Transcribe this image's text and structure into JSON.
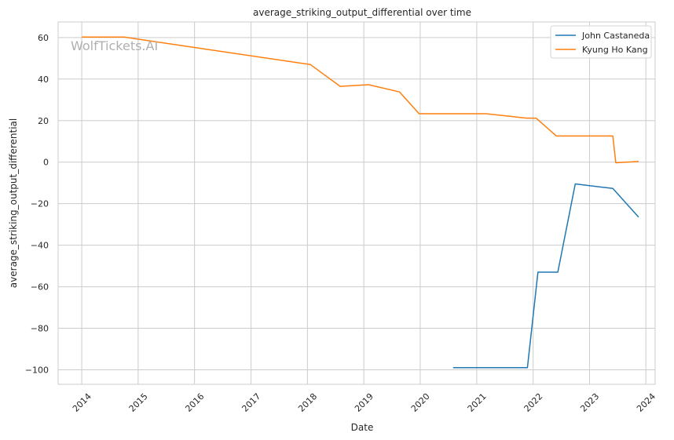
{
  "chart_data": {
    "type": "line",
    "title": "average_striking_output_differential over time",
    "xlabel": "Date",
    "ylabel": "average_striking_output_differential",
    "xlim": [
      "2013-08-01",
      "2024-03-01"
    ],
    "ylim": [
      -107,
      67.5
    ],
    "x_ticks": [
      "2014",
      "2015",
      "2016",
      "2017",
      "2018",
      "2019",
      "2020",
      "2021",
      "2022",
      "2023",
      "2024"
    ],
    "y_ticks": [
      60,
      40,
      20,
      0,
      -20,
      -40,
      -60,
      -80,
      -100
    ],
    "grid": true,
    "legend_position": "top-right",
    "watermark": "WolfTickets.AI",
    "series": [
      {
        "name": "John Castaneda",
        "color": "#1f77b4",
        "points": [
          [
            "2020-08-01",
            -99
          ],
          [
            "2021-11-25",
            -99
          ],
          [
            "2022-02-01",
            -53
          ],
          [
            "2022-06-10",
            -53
          ],
          [
            "2022-10-01",
            -10.5
          ],
          [
            "2023-06-01",
            -12.7
          ],
          [
            "2023-11-15",
            -26.5
          ]
        ]
      },
      {
        "name": "Kyung Ho Kang",
        "color": "#ff7f0e",
        "points": [
          [
            "2014-01-01",
            60.2
          ],
          [
            "2014-10-01",
            60.2
          ],
          [
            "2018-01-20",
            47
          ],
          [
            "2018-08-01",
            36.5
          ],
          [
            "2019-02-01",
            37.3
          ],
          [
            "2019-08-20",
            33.8
          ],
          [
            "2019-12-25",
            23.3
          ],
          [
            "2021-03-01",
            23.3
          ],
          [
            "2021-11-20",
            21.2
          ],
          [
            "2022-01-20",
            21.2
          ],
          [
            "2022-06-01",
            12.6
          ],
          [
            "2023-06-01",
            12.6
          ],
          [
            "2023-06-20",
            -0.3
          ],
          [
            "2023-11-15",
            0.3
          ]
        ]
      }
    ]
  }
}
